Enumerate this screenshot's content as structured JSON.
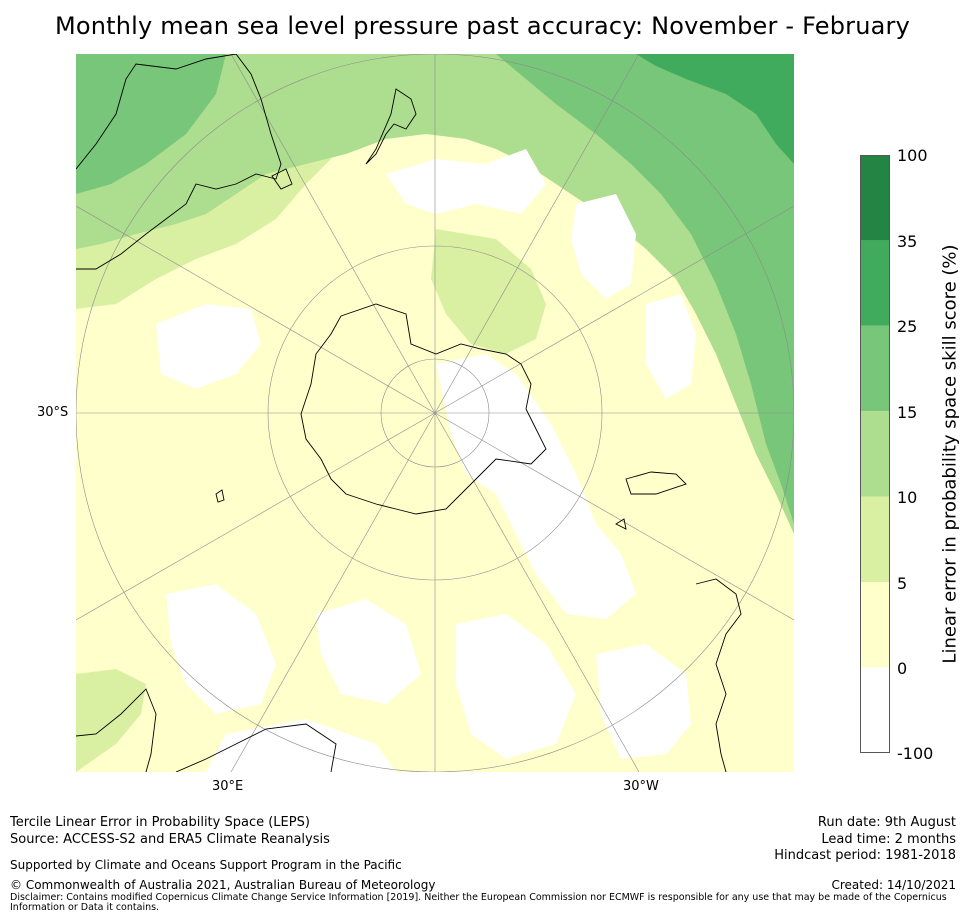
{
  "title": "Monthly mean sea level pressure past accuracy: November - February",
  "map": {
    "projection": "south-polar-stereographic",
    "lat_label": "30°S",
    "lon_labels": [
      "30°E",
      "30°W"
    ]
  },
  "colorbar": {
    "label": "Linear error in probability space skill score (%)",
    "ticks": [
      "100",
      "35",
      "25",
      "15",
      "10",
      "5",
      "0",
      "-100"
    ],
    "classes": [
      {
        "range": "-100 to 0",
        "color": "#ffffff"
      },
      {
        "range": "0 to 5",
        "color": "#ffffcc"
      },
      {
        "range": "5 to 10",
        "color": "#d9f0a3"
      },
      {
        "range": "10 to 15",
        "color": "#addd8e"
      },
      {
        "range": "15 to 25",
        "color": "#78c679"
      },
      {
        "range": "25 to 35",
        "color": "#41ab5d"
      },
      {
        "range": "35 to 100",
        "color": "#238443"
      }
    ]
  },
  "footer": {
    "left1": "Tercile Linear Error in Probability Space (LEPS)",
    "left2": "Source: ACCESS-S2 and ERA5 Climate Reanalysis",
    "support": "Supported by Climate and Oceans Support Program in the Pacific",
    "copyright": "© Commonwealth of Australia 2021, Australian Bureau of Meteorology",
    "disclaimer": "Disclaimer: Contains modified Copernicus Climate Change Service Information [2019]. Neither the European Commission nor ECMWF is responsible for any use that may be made of the Copernicus Information or Data it contains.",
    "run_date": "Run date: 9th August",
    "lead_time": "Lead time: 2 months",
    "hindcast": "Hindcast period: 1981-2018",
    "created": "Created: 14/10/2021"
  }
}
